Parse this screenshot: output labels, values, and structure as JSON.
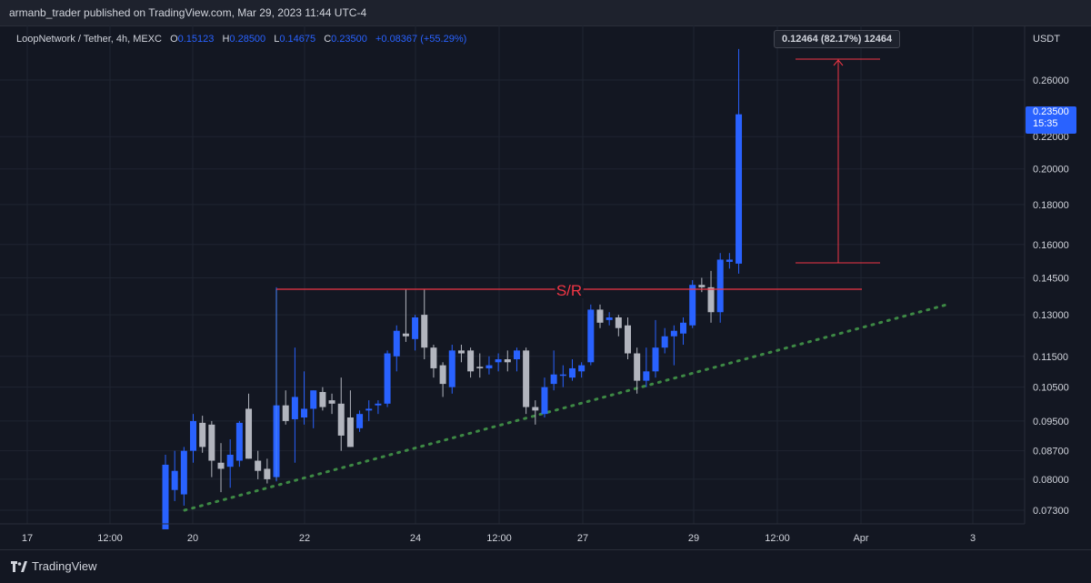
{
  "header": {
    "published": "armanb_trader published on TradingView.com, Mar 29, 2023 11:44 UTC-4"
  },
  "legend": {
    "symbol": "LoopNetwork / Tether, 4h, MEXC",
    "o_label": "O",
    "o": "0.15123",
    "h_label": "H",
    "h": "0.28500",
    "l_label": "L",
    "l": "0.14675",
    "c_label": "C",
    "c": "0.23500",
    "change": "+0.08367 (+55.29%)"
  },
  "currency": "USDT",
  "measure_label": "0.12464 (82.17%) 12464",
  "last_price": {
    "value": "0.23500",
    "countdown": "15:35"
  },
  "sr_label": "S/R",
  "footer": {
    "brand": "TradingView"
  },
  "colors": {
    "up": "#2962ff",
    "down": "#b2b5be",
    "sr_line": "#f23645",
    "trendline": "#4caf50",
    "background": "#131722"
  },
  "chart_data": {
    "type": "candlestick",
    "scale": "log",
    "y_ticks": [
      "0.26000",
      "0.22000",
      "0.20000",
      "0.18000",
      "0.16000",
      "0.14500",
      "0.13000",
      "0.11500",
      "0.10500",
      "0.09500",
      "0.08700",
      "0.08000",
      "0.07300"
    ],
    "x_ticks": [
      "17",
      "12:00",
      "20",
      "22",
      "24",
      "12:00",
      "27",
      "29",
      "12:00",
      "Apr",
      "3"
    ],
    "candles": [
      {
        "o": 0.069,
        "h": 0.086,
        "l": 0.069,
        "c": 0.0835
      },
      {
        "o": 0.0775,
        "h": 0.087,
        "l": 0.075,
        "c": 0.082
      },
      {
        "o": 0.0765,
        "h": 0.088,
        "l": 0.074,
        "c": 0.087
      },
      {
        "o": 0.087,
        "h": 0.097,
        "l": 0.084,
        "c": 0.095
      },
      {
        "o": 0.0945,
        "h": 0.0965,
        "l": 0.0865,
        "c": 0.088
      },
      {
        "o": 0.094,
        "h": 0.095,
        "l": 0.0805,
        "c": 0.0845
      },
      {
        "o": 0.084,
        "h": 0.089,
        "l": 0.077,
        "c": 0.0825
      },
      {
        "o": 0.083,
        "h": 0.09,
        "l": 0.078,
        "c": 0.086
      },
      {
        "o": 0.0845,
        "h": 0.095,
        "l": 0.083,
        "c": 0.0945
      },
      {
        "o": 0.0985,
        "h": 0.103,
        "l": 0.085,
        "c": 0.085
      },
      {
        "o": 0.0845,
        "h": 0.087,
        "l": 0.08,
        "c": 0.082
      },
      {
        "o": 0.0825,
        "h": 0.085,
        "l": 0.079,
        "c": 0.08
      },
      {
        "o": 0.0805,
        "h": 0.141,
        "l": 0.0795,
        "c": 0.0995
      },
      {
        "o": 0.0995,
        "h": 0.104,
        "l": 0.094,
        "c": 0.095
      },
      {
        "o": 0.0955,
        "h": 0.118,
        "l": 0.084,
        "c": 0.102
      },
      {
        "o": 0.096,
        "h": 0.11,
        "l": 0.094,
        "c": 0.0985
      },
      {
        "o": 0.0985,
        "h": 0.104,
        "l": 0.093,
        "c": 0.104
      },
      {
        "o": 0.1035,
        "h": 0.105,
        "l": 0.098,
        "c": 0.099
      },
      {
        "o": 0.101,
        "h": 0.103,
        "l": 0.097,
        "c": 0.1
      },
      {
        "o": 0.1,
        "h": 0.108,
        "l": 0.087,
        "c": 0.091
      },
      {
        "o": 0.096,
        "h": 0.104,
        "l": 0.088,
        "c": 0.088
      },
      {
        "o": 0.093,
        "h": 0.098,
        "l": 0.092,
        "c": 0.097
      },
      {
        "o": 0.098,
        "h": 0.101,
        "l": 0.095,
        "c": 0.0985
      },
      {
        "o": 0.0995,
        "h": 0.101,
        "l": 0.097,
        "c": 0.1
      },
      {
        "o": 0.1,
        "h": 0.117,
        "l": 0.099,
        "c": 0.116
      },
      {
        "o": 0.115,
        "h": 0.126,
        "l": 0.11,
        "c": 0.124
      },
      {
        "o": 0.123,
        "h": 0.14,
        "l": 0.12,
        "c": 0.122
      },
      {
        "o": 0.121,
        "h": 0.13,
        "l": 0.117,
        "c": 0.129
      },
      {
        "o": 0.13,
        "h": 0.14,
        "l": 0.114,
        "c": 0.118
      },
      {
        "o": 0.118,
        "h": 0.119,
        "l": 0.108,
        "c": 0.111
      },
      {
        "o": 0.112,
        "h": 0.113,
        "l": 0.102,
        "c": 0.106
      },
      {
        "o": 0.105,
        "h": 0.119,
        "l": 0.103,
        "c": 0.117
      },
      {
        "o": 0.117,
        "h": 0.119,
        "l": 0.113,
        "c": 0.116
      },
      {
        "o": 0.117,
        "h": 0.118,
        "l": 0.108,
        "c": 0.11
      },
      {
        "o": 0.1115,
        "h": 0.116,
        "l": 0.108,
        "c": 0.111
      },
      {
        "o": 0.111,
        "h": 0.115,
        "l": 0.109,
        "c": 0.112
      },
      {
        "o": 0.113,
        "h": 0.116,
        "l": 0.11,
        "c": 0.114
      },
      {
        "o": 0.114,
        "h": 0.117,
        "l": 0.11,
        "c": 0.113
      },
      {
        "o": 0.114,
        "h": 0.118,
        "l": 0.11,
        "c": 0.117
      },
      {
        "o": 0.117,
        "h": 0.118,
        "l": 0.097,
        "c": 0.099
      },
      {
        "o": 0.099,
        "h": 0.101,
        "l": 0.094,
        "c": 0.098
      },
      {
        "o": 0.097,
        "h": 0.108,
        "l": 0.096,
        "c": 0.105
      },
      {
        "o": 0.106,
        "h": 0.117,
        "l": 0.104,
        "c": 0.109
      },
      {
        "o": 0.109,
        "h": 0.112,
        "l": 0.105,
        "c": 0.109
      },
      {
        "o": 0.108,
        "h": 0.114,
        "l": 0.107,
        "c": 0.111
      },
      {
        "o": 0.11,
        "h": 0.113,
        "l": 0.108,
        "c": 0.112
      },
      {
        "o": 0.113,
        "h": 0.134,
        "l": 0.112,
        "c": 0.132
      },
      {
        "o": 0.132,
        "h": 0.134,
        "l": 0.125,
        "c": 0.127
      },
      {
        "o": 0.128,
        "h": 0.131,
        "l": 0.126,
        "c": 0.129
      },
      {
        "o": 0.129,
        "h": 0.13,
        "l": 0.122,
        "c": 0.125
      },
      {
        "o": 0.126,
        "h": 0.129,
        "l": 0.114,
        "c": 0.116
      },
      {
        "o": 0.116,
        "h": 0.118,
        "l": 0.103,
        "c": 0.107
      },
      {
        "o": 0.107,
        "h": 0.118,
        "l": 0.105,
        "c": 0.11
      },
      {
        "o": 0.11,
        "h": 0.128,
        "l": 0.108,
        "c": 0.118
      },
      {
        "o": 0.118,
        "h": 0.125,
        "l": 0.116,
        "c": 0.122
      },
      {
        "o": 0.122,
        "h": 0.126,
        "l": 0.112,
        "c": 0.124
      },
      {
        "o": 0.123,
        "h": 0.129,
        "l": 0.119,
        "c": 0.127
      },
      {
        "o": 0.126,
        "h": 0.144,
        "l": 0.125,
        "c": 0.142
      },
      {
        "o": 0.142,
        "h": 0.145,
        "l": 0.139,
        "c": 0.141
      },
      {
        "o": 0.141,
        "h": 0.148,
        "l": 0.127,
        "c": 0.131
      },
      {
        "o": 0.131,
        "h": 0.156,
        "l": 0.127,
        "c": 0.153
      },
      {
        "o": 0.152,
        "h": 0.156,
        "l": 0.149,
        "c": 0.153
      },
      {
        "o": 0.1512,
        "h": 0.285,
        "l": 0.1468,
        "c": 0.235
      }
    ]
  }
}
